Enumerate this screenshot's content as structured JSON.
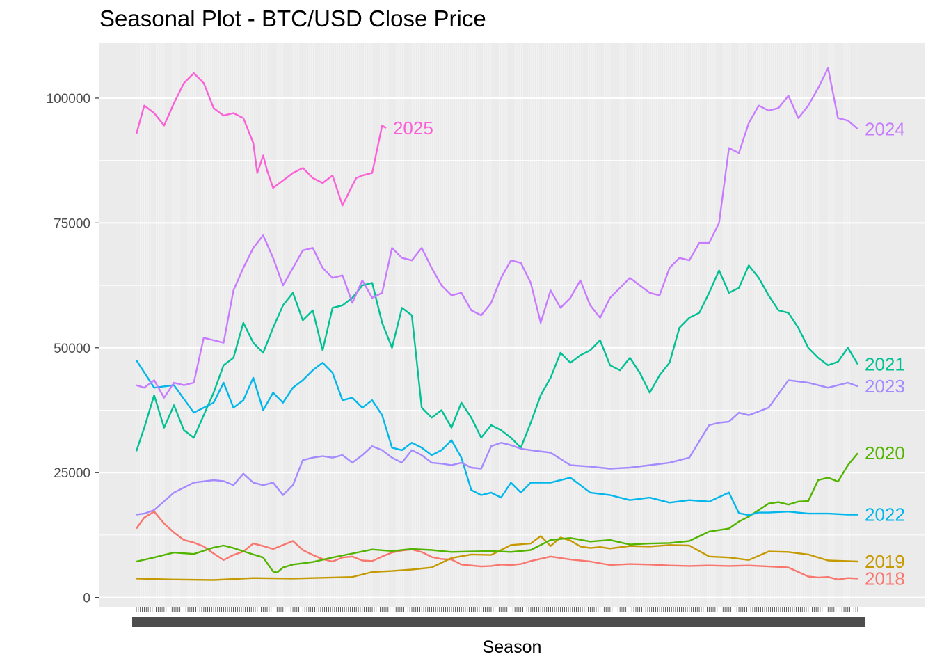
{
  "chart_data": {
    "type": "line",
    "title": "Seasonal Plot - BTC/USD Close Price",
    "xlabel": "Season",
    "ylabel": "",
    "ylim": [
      -2000,
      111000
    ],
    "xlim": [
      1,
      365
    ],
    "y_ticks": [
      0,
      25000,
      50000,
      75000,
      100000
    ],
    "y_tick_labels": [
      "0",
      "25000",
      "50000",
      "75000",
      "100000"
    ],
    "grid": true,
    "legend": "direct labels at line ends",
    "series": [
      {
        "name": "2018",
        "color": "#F8766D",
        "label": "2018",
        "x": [
          1,
          5,
          10,
          15,
          20,
          25,
          30,
          35,
          40,
          45,
          50,
          55,
          60,
          65,
          70,
          75,
          80,
          85,
          90,
          95,
          100,
          105,
          110,
          115,
          120,
          125,
          130,
          135,
          140,
          145,
          150,
          155,
          160,
          165,
          170,
          175,
          180,
          185,
          190,
          195,
          200,
          210,
          220,
          230,
          240,
          250,
          260,
          270,
          280,
          290,
          300,
          310,
          320,
          330,
          340,
          345,
          350,
          355,
          360,
          365
        ],
        "y": [
          13800,
          16000,
          17200,
          14800,
          13000,
          11500,
          11000,
          10200,
          8800,
          7500,
          8500,
          9200,
          10800,
          10300,
          9700,
          10500,
          11300,
          9500,
          8500,
          7700,
          7200,
          8000,
          8200,
          7400,
          7300,
          8200,
          9000,
          9400,
          9600,
          9100,
          8100,
          7700,
          7600,
          6600,
          6400,
          6200,
          6300,
          6600,
          6500,
          6700,
          7300,
          8200,
          7600,
          7200,
          6500,
          6700,
          6600,
          6400,
          6300,
          6400,
          6300,
          6400,
          6200,
          6000,
          4200,
          4000,
          4100,
          3600,
          3900,
          3800
        ]
      },
      {
        "name": "2019",
        "color": "#C49A00",
        "label": "2019",
        "x": [
          1,
          20,
          40,
          60,
          80,
          100,
          110,
          120,
          130,
          140,
          150,
          160,
          170,
          180,
          190,
          200,
          205,
          210,
          215,
          220,
          225,
          230,
          235,
          240,
          250,
          260,
          270,
          280,
          290,
          300,
          310,
          320,
          330,
          340,
          350,
          365
        ],
        "y": [
          3800,
          3600,
          3500,
          3900,
          3800,
          4000,
          4100,
          5100,
          5300,
          5600,
          6000,
          7900,
          8600,
          8500,
          10500,
          10800,
          12300,
          10300,
          12000,
          11400,
          10200,
          9900,
          10100,
          9800,
          10300,
          10200,
          10500,
          10400,
          8200,
          8000,
          7500,
          9200,
          9100,
          8600,
          7400,
          7200
        ]
      },
      {
        "name": "2020",
        "color": "#53B400",
        "label": "2020",
        "x": [
          1,
          10,
          20,
          30,
          40,
          45,
          50,
          60,
          65,
          70,
          72,
          75,
          80,
          90,
          100,
          110,
          120,
          130,
          140,
          150,
          160,
          170,
          180,
          190,
          200,
          210,
          220,
          230,
          240,
          250,
          260,
          270,
          280,
          290,
          300,
          305,
          310,
          315,
          320,
          325,
          330,
          335,
          340,
          345,
          350,
          355,
          360,
          365
        ],
        "y": [
          7200,
          8000,
          9000,
          8700,
          10000,
          10400,
          9900,
          8600,
          8000,
          5200,
          5000,
          6000,
          6600,
          7100,
          8000,
          8800,
          9600,
          9300,
          9700,
          9500,
          9100,
          9200,
          9300,
          9100,
          9500,
          11500,
          11900,
          11200,
          11500,
          10600,
          10800,
          10900,
          11300,
          13200,
          13800,
          15200,
          16200,
          17500,
          18800,
          19100,
          18600,
          19200,
          19300,
          23500,
          24000,
          23200,
          26500,
          28900
        ]
      },
      {
        "name": "2021",
        "color": "#00C094",
        "label": "2021",
        "x": [
          1,
          5,
          10,
          15,
          20,
          25,
          30,
          35,
          40,
          45,
          50,
          55,
          60,
          65,
          70,
          75,
          80,
          85,
          90,
          95,
          100,
          105,
          110,
          115,
          120,
          125,
          130,
          135,
          140,
          145,
          150,
          155,
          160,
          165,
          170,
          175,
          180,
          185,
          190,
          195,
          200,
          205,
          210,
          215,
          220,
          225,
          230,
          235,
          240,
          245,
          250,
          255,
          260,
          265,
          270,
          275,
          280,
          285,
          290,
          295,
          300,
          305,
          310,
          315,
          320,
          325,
          330,
          335,
          340,
          345,
          350,
          355,
          360,
          365
        ],
        "y": [
          29300,
          34000,
          40500,
          34000,
          38500,
          33500,
          32000,
          36500,
          41000,
          46500,
          48000,
          55000,
          51000,
          49000,
          54000,
          58500,
          61000,
          55500,
          57500,
          49500,
          58000,
          58500,
          60000,
          62500,
          63000,
          55000,
          50000,
          58000,
          56500,
          38000,
          36000,
          37500,
          34000,
          39000,
          36000,
          32000,
          34500,
          33500,
          32000,
          30000,
          35000,
          40500,
          44000,
          49000,
          47000,
          48500,
          49500,
          51500,
          46500,
          45500,
          48000,
          45000,
          41000,
          44500,
          47000,
          54000,
          56000,
          57000,
          61000,
          65500,
          61000,
          62000,
          66500,
          64000,
          60500,
          57500,
          57000,
          54000,
          50000,
          48000,
          46500,
          47200,
          50000,
          46700
        ]
      },
      {
        "name": "2022",
        "color": "#00B6EB",
        "label": "2022",
        "x": [
          1,
          10,
          20,
          30,
          40,
          45,
          50,
          55,
          60,
          65,
          70,
          75,
          80,
          85,
          90,
          95,
          100,
          105,
          110,
          115,
          120,
          125,
          130,
          135,
          140,
          145,
          150,
          155,
          160,
          165,
          170,
          175,
          180,
          185,
          190,
          195,
          200,
          210,
          220,
          230,
          240,
          250,
          260,
          270,
          280,
          290,
          300,
          305,
          310,
          315,
          320,
          330,
          340,
          350,
          360,
          365
        ],
        "y": [
          47500,
          42000,
          42500,
          37000,
          39000,
          43000,
          38000,
          39500,
          44000,
          37500,
          41000,
          39000,
          42000,
          43500,
          45500,
          47000,
          45000,
          39500,
          40000,
          38000,
          39500,
          36500,
          30000,
          29500,
          31000,
          30000,
          28500,
          29500,
          31500,
          28000,
          21500,
          20500,
          21000,
          20000,
          23000,
          21000,
          23000,
          23000,
          24000,
          21000,
          20500,
          19500,
          20000,
          19000,
          19500,
          19200,
          21000,
          16900,
          16500,
          17000,
          17000,
          17200,
          16800,
          16800,
          16600,
          16600
        ]
      },
      {
        "name": "2023",
        "color": "#A58AFF",
        "label": "2023",
        "x": [
          1,
          5,
          10,
          20,
          30,
          40,
          45,
          50,
          55,
          60,
          65,
          70,
          75,
          80,
          85,
          90,
          95,
          100,
          105,
          110,
          115,
          120,
          125,
          130,
          135,
          140,
          145,
          150,
          155,
          160,
          165,
          170,
          175,
          180,
          185,
          190,
          195,
          200,
          210,
          220,
          230,
          240,
          250,
          260,
          270,
          280,
          290,
          295,
          300,
          305,
          310,
          320,
          330,
          340,
          345,
          350,
          355,
          360,
          365
        ],
        "y": [
          16600,
          16800,
          17500,
          21000,
          23000,
          23500,
          23300,
          22500,
          24800,
          23000,
          22500,
          23000,
          20500,
          22500,
          27500,
          28000,
          28300,
          28000,
          28500,
          27000,
          28500,
          30300,
          29500,
          28000,
          27000,
          29500,
          28500,
          27000,
          26800,
          26500,
          27000,
          26000,
          25800,
          30300,
          31000,
          30500,
          29800,
          29500,
          29000,
          26500,
          26200,
          25800,
          26000,
          26500,
          27000,
          28000,
          34500,
          35000,
          35200,
          37000,
          36500,
          38000,
          43500,
          43000,
          42500,
          42000,
          42500,
          43000,
          42300
        ]
      },
      {
        "name": "2024",
        "color": "#C77CFF",
        "label": "2024",
        "x": [
          1,
          5,
          10,
          15,
          20,
          25,
          30,
          35,
          40,
          45,
          50,
          55,
          60,
          65,
          70,
          75,
          80,
          85,
          90,
          95,
          100,
          105,
          110,
          115,
          120,
          125,
          130,
          135,
          140,
          145,
          150,
          155,
          160,
          165,
          170,
          175,
          180,
          185,
          190,
          195,
          200,
          205,
          210,
          215,
          220,
          225,
          230,
          235,
          240,
          245,
          250,
          255,
          260,
          265,
          270,
          275,
          280,
          285,
          290,
          295,
          300,
          305,
          310,
          315,
          320,
          325,
          330,
          335,
          340,
          345,
          350,
          355,
          360,
          365
        ],
        "y": [
          42500,
          42000,
          43500,
          40000,
          43000,
          42500,
          43000,
          52000,
          51500,
          51000,
          61500,
          66000,
          70000,
          72500,
          68000,
          62500,
          66000,
          69500,
          70000,
          66000,
          64000,
          64500,
          59000,
          63500,
          60000,
          61000,
          70000,
          68000,
          67500,
          70000,
          66000,
          62500,
          60500,
          61000,
          57500,
          56500,
          59000,
          64000,
          67500,
          67000,
          63000,
          55000,
          61500,
          58000,
          60000,
          63500,
          58500,
          56000,
          60000,
          62000,
          64000,
          62500,
          61000,
          60500,
          66000,
          68000,
          67500,
          71000,
          71000,
          75000,
          90000,
          89000,
          95000,
          98500,
          97500,
          98000,
          100500,
          96000,
          98500,
          102000,
          106000,
          96000,
          95500,
          93800
        ]
      },
      {
        "name": "2025",
        "color": "#FB61D7",
        "label": "2025",
        "x": [
          1,
          5,
          10,
          15,
          20,
          25,
          30,
          35,
          40,
          45,
          50,
          55,
          60,
          62,
          65,
          67,
          70,
          75,
          80,
          85,
          90,
          95,
          100,
          105,
          110,
          112,
          115,
          120,
          125,
          127
        ],
        "y": [
          92800,
          98500,
          97000,
          94500,
          99000,
          103000,
          105000,
          103000,
          98000,
          96500,
          97000,
          96000,
          91000,
          85000,
          88500,
          85500,
          82000,
          83500,
          85000,
          86000,
          84000,
          83000,
          84500,
          78500,
          82500,
          84000,
          84500,
          85000,
          94500,
          94000
        ]
      }
    ]
  }
}
